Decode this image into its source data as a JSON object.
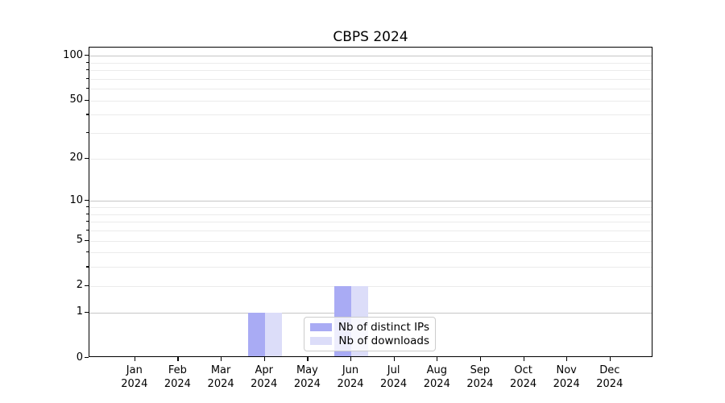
{
  "chart_data": {
    "type": "bar",
    "title": "CBPS 2024",
    "scale": "log1p",
    "categories": [
      "Jan",
      "Feb",
      "Mar",
      "Apr",
      "May",
      "Jun",
      "Jul",
      "Aug",
      "Sep",
      "Oct",
      "Nov",
      "Dec"
    ],
    "category_year": "2024",
    "series": [
      {
        "name": "Nb of distinct IPs",
        "color": "#a9abf4",
        "values": [
          0,
          0,
          0,
          1,
          0,
          2,
          0,
          0,
          0,
          0,
          0,
          0
        ]
      },
      {
        "name": "Nb of downloads",
        "color": "#dcddf9",
        "values": [
          0,
          0,
          0,
          1,
          0,
          2,
          0,
          0,
          0,
          0,
          0,
          0
        ]
      }
    ],
    "y_ticks": [
      0,
      1,
      2,
      5,
      10,
      20,
      50,
      100
    ],
    "grid_major": [
      1,
      10,
      100
    ],
    "grid_minor": [
      2,
      3,
      4,
      5,
      6,
      7,
      8,
      9,
      20,
      30,
      40,
      50,
      60,
      70,
      80,
      90
    ],
    "ylim": [
      0,
      113
    ],
    "legend_position": "lower center-right inside plot",
    "grid": "on",
    "colors": {
      "grid_major": "#c6c6c6",
      "grid_minor": "#ebebeb",
      "axis": "#000000",
      "background": "#ffffff"
    }
  }
}
